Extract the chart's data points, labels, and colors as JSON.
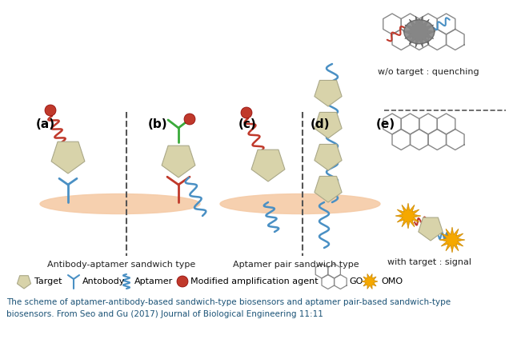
{
  "bg_color": "#ffffff",
  "caption_color": "#1a5276",
  "caption_line1": "The scheme of aptamer-antibody-based sandwich-type biosensors and aptamer pair-based sandwich-type",
  "caption_line2": "biosensors. From Seo and Gu (2017) Journal of Biological Engineering 11:11",
  "caption_fontsize": 7.5,
  "label_a": "(a)",
  "label_b": "(b)",
  "label_c": "(c)",
  "label_d": "(d)",
  "label_e": "(e)",
  "subtitle_left": "Antibody-aptamer sandwich type",
  "subtitle_right": "Aptamer pair sandwich type",
  "legend_items": [
    "Target",
    "Antobody",
    "Aptamer",
    "Modified amplification agent",
    "GO",
    "OMO"
  ],
  "wo_target_text": "w/o target : quenching",
  "with_target_text": "with target : signal",
  "target_color": "#d8d3aa",
  "aptamer_color": "#4a90c4",
  "antibody_green_color": "#3aaa3a",
  "red_color": "#c0392b",
  "surface_color": "#f5cba7",
  "go_color": "#888888",
  "omo_color": "#f5a800",
  "dashed_color": "#555555",
  "text_color": "#222222"
}
